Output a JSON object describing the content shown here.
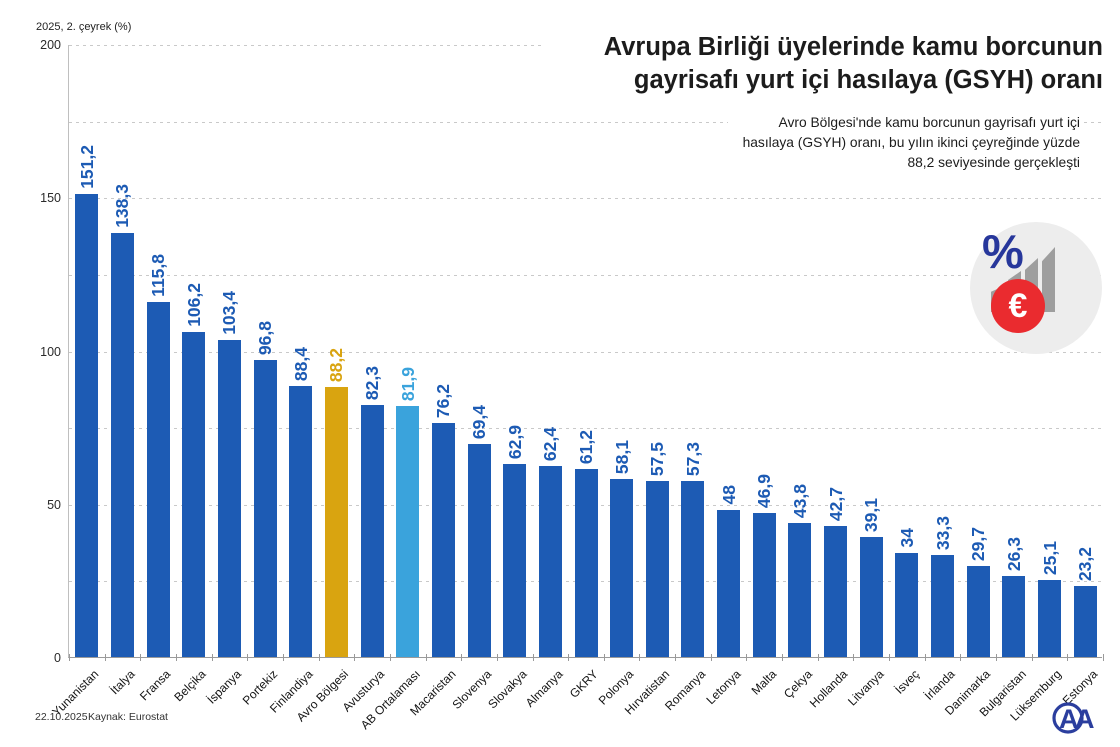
{
  "header": {
    "title": "Avrupa Birliği üyelerinde kamu borcunun gayrisafı yurt içi hasılaya (GSYH) oranı",
    "subtitle": "Avro Bölgesi'nde kamu borcunun gayrisafı yurt içi hasılaya (GSYH) oranı, bu yılın ikinci çeyreğinde yüzde 88,2 seviyesinde gerçekleşti"
  },
  "axis_note": "2025, 2. çeyrek (%)",
  "footer": {
    "date": "22.10.2025",
    "source": "Kaynak: Eurostat",
    "logo_text": "AA"
  },
  "icon": {
    "name": "percent-euro-bars-icon",
    "percent": "%",
    "euro": "€"
  },
  "colors": {
    "bar": "#1d5bb4",
    "highlight_gold": "#d9a410",
    "highlight_lightblue": "#3aa3dc",
    "grid": "#c9c9c9",
    "axis": "#9a9a9a",
    "title_text": "#1c1c1c",
    "icon_navy": "#27379b",
    "icon_red": "#ea2b2f",
    "icon_gray": "#9e9e9e",
    "logo_blue": "#2b3e9e"
  },
  "chart_data": {
    "type": "bar",
    "title": "Avrupa Birliği üyelerinde kamu borcunun gayrisafı yurt içi hasılaya (GSYH) oranı",
    "unit_label": "2025, 2. çeyrek (%)",
    "ylim": [
      0,
      200
    ],
    "yticks": [
      0,
      50,
      100,
      150,
      200
    ],
    "grid_interval": 25,
    "grid": "dashed-horizontal",
    "legend_position": "none",
    "categories": [
      "Yunanistan",
      "İtalya",
      "Fransa",
      "Belçika",
      "İspanya",
      "Portekiz",
      "Finlandiya",
      "Avro Bölgesi",
      "Avusturya",
      "AB Ortalaması",
      "Macaristan",
      "Slovenya",
      "Slovakya",
      "Almanya",
      "GKRY",
      "Polonya",
      "Hırvatistan",
      "Romanya",
      "Letonya",
      "Malta",
      "Çekya",
      "Hollanda",
      "Litvanya",
      "İsveç",
      "İrlanda",
      "Danimarka",
      "Bulgaristan",
      "Lüksemburg",
      "Estonya"
    ],
    "values": [
      151.2,
      138.3,
      115.8,
      106.2,
      103.4,
      96.8,
      88.4,
      88.2,
      82.3,
      81.9,
      76.2,
      69.4,
      62.9,
      62.4,
      61.2,
      58.1,
      57.5,
      57.3,
      48,
      46.9,
      43.8,
      42.7,
      39.1,
      34,
      33.3,
      29.7,
      26.3,
      25.1,
      23.2
    ],
    "value_labels": [
      "151,2",
      "138,3",
      "115,8",
      "106,2",
      "103,4",
      "96,8",
      "88,4",
      "88,2",
      "82,3",
      "81,9",
      "76,2",
      "69,4",
      "62,9",
      "62,4",
      "61,2",
      "58,1",
      "57,5",
      "57,3",
      "48",
      "46,9",
      "43,8",
      "42,7",
      "39,1",
      "34",
      "33,3",
      "29,7",
      "26,3",
      "25,1",
      "23,2"
    ],
    "highlights": {
      "Avro Bölgesi": "#d9a410",
      "AB Ortalaması": "#3aa3dc"
    }
  }
}
